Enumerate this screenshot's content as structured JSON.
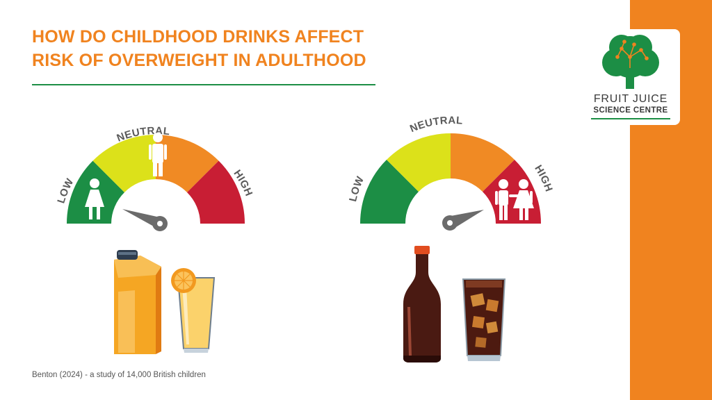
{
  "title": {
    "line1": "HOW DO CHILDHOOD DRINKS AFFECT",
    "line2": "RISK OF OVERWEIGHT IN ADULTHOOD"
  },
  "logo": {
    "line1": "FRUIT JUICE",
    "line2": "SCIENCE CENTRE"
  },
  "gauges": [
    {
      "low_label": "LOW",
      "neutral_label": "NEUTRAL",
      "high_label": "HIGH",
      "figure_zone": "low",
      "needle_zone": "neutral",
      "drink": "fruit-juice"
    },
    {
      "low_label": "LOW",
      "neutral_label": "NEUTRAL",
      "high_label": "HIGH",
      "figure_zone": "high",
      "needle_zone": "high",
      "drink": "cola"
    }
  ],
  "footnote": "Benton (2024) - a study of 14,000 British children",
  "colors": {
    "orange": "#f0831f",
    "green": "#1c8e45",
    "yellow": "#dce11a",
    "gauge_orange": "#f08a24",
    "red": "#c81e34",
    "needle": "#6b6b6b"
  }
}
